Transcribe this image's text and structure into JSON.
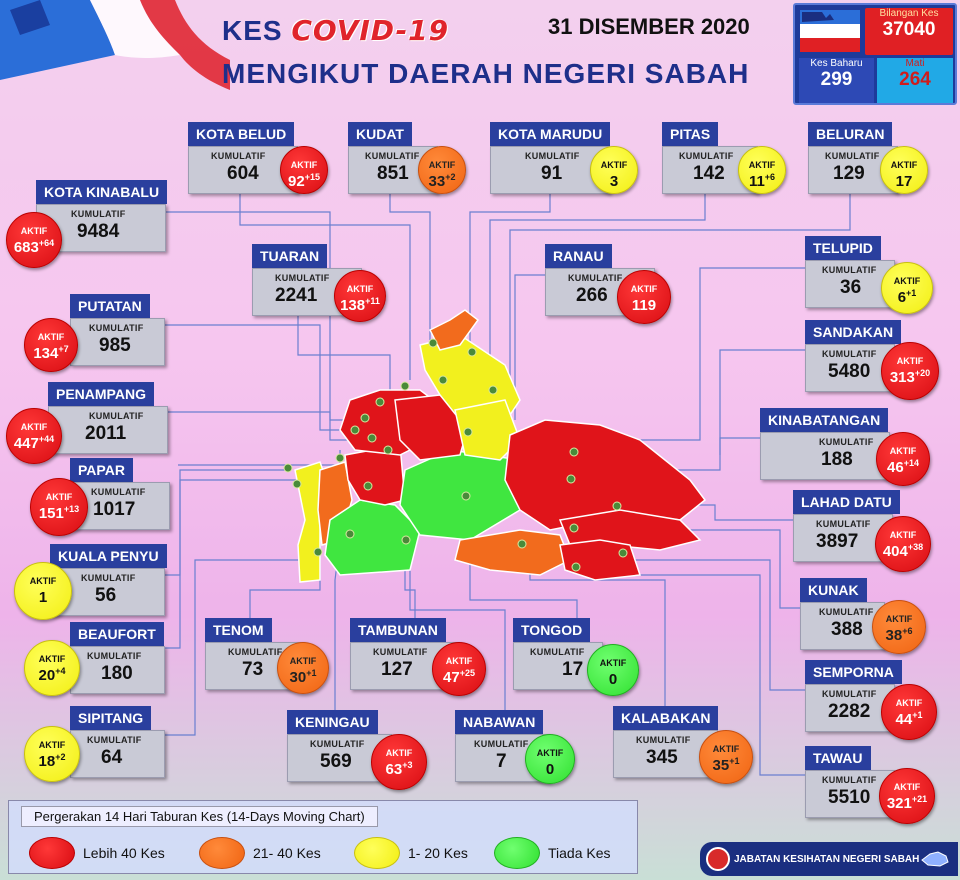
{
  "header": {
    "kes": "KES",
    "covid": "COVID-19",
    "subtitle": "MENGIKUT DAERAH NEGERI SABAH",
    "date": "31 DISEMBER 2020"
  },
  "stats": {
    "total_label": "Bilangan Kes",
    "total_value": "37040",
    "new_label": "Kes Baharu",
    "new_value": "299",
    "death_label": "Mati",
    "death_value": "264"
  },
  "labels": {
    "kumulatif": "KUMULATIF",
    "aktif": "AKTIF"
  },
  "districts": [
    {
      "id": "kota-belud",
      "name": "KOTA BELUD",
      "kumulatif": "604",
      "aktif": "92",
      "delta": "+15",
      "level": "red"
    },
    {
      "id": "kudat",
      "name": "KUDAT",
      "kumulatif": "851",
      "aktif": "33",
      "delta": "+2",
      "level": "orange"
    },
    {
      "id": "kota-marudu",
      "name": "KOTA MARUDU",
      "kumulatif": "91",
      "aktif": "3",
      "delta": "",
      "level": "yellow"
    },
    {
      "id": "pitas",
      "name": "PITAS",
      "kumulatif": "142",
      "aktif": "11",
      "delta": "+6",
      "level": "yellow"
    },
    {
      "id": "beluran",
      "name": "BELURAN",
      "kumulatif": "129",
      "aktif": "17",
      "delta": "",
      "level": "yellow"
    },
    {
      "id": "kota-kinabalu",
      "name": "KOTA KINABALU",
      "kumulatif": "9484",
      "aktif": "683",
      "delta": "+64",
      "level": "red"
    },
    {
      "id": "tuaran",
      "name": "TUARAN",
      "kumulatif": "2241",
      "aktif": "138",
      "delta": "+11",
      "level": "red"
    },
    {
      "id": "ranau",
      "name": "RANAU",
      "kumulatif": "266",
      "aktif": "119",
      "delta": "",
      "level": "red"
    },
    {
      "id": "telupid",
      "name": "TELUPID",
      "kumulatif": "36",
      "aktif": "6",
      "delta": "+1",
      "level": "yellow"
    },
    {
      "id": "putatan",
      "name": "PUTATAN",
      "kumulatif": "985",
      "aktif": "134",
      "delta": "+7",
      "level": "red"
    },
    {
      "id": "sandakan",
      "name": "SANDAKAN",
      "kumulatif": "5480",
      "aktif": "313",
      "delta": "+20",
      "level": "red"
    },
    {
      "id": "penampang",
      "name": "PENAMPANG",
      "kumulatif": "2011",
      "aktif": "447",
      "delta": "+44",
      "level": "red"
    },
    {
      "id": "kinabatangan",
      "name": "KINABATANGAN",
      "kumulatif": "188",
      "aktif": "46",
      "delta": "+14",
      "level": "red"
    },
    {
      "id": "papar",
      "name": "PAPAR",
      "kumulatif": "1017",
      "aktif": "151",
      "delta": "+13",
      "level": "red"
    },
    {
      "id": "lahad-datu",
      "name": "LAHAD DATU",
      "kumulatif": "3897",
      "aktif": "404",
      "delta": "+38",
      "level": "red"
    },
    {
      "id": "kuala-penyu",
      "name": "KUALA PENYU",
      "kumulatif": "56",
      "aktif": "1",
      "delta": "",
      "level": "yellow"
    },
    {
      "id": "kunak",
      "name": "KUNAK",
      "kumulatif": "388",
      "aktif": "38",
      "delta": "+6",
      "level": "orange"
    },
    {
      "id": "beaufort",
      "name": "BEAUFORT",
      "kumulatif": "180",
      "aktif": "20",
      "delta": "+4",
      "level": "yellow"
    },
    {
      "id": "tenom",
      "name": "TENOM",
      "kumulatif": "73",
      "aktif": "30",
      "delta": "+1",
      "level": "orange"
    },
    {
      "id": "tambunan",
      "name": "TAMBUNAN",
      "kumulatif": "127",
      "aktif": "47",
      "delta": "+25",
      "level": "red"
    },
    {
      "id": "tongod",
      "name": "TONGOD",
      "kumulatif": "17",
      "aktif": "0",
      "delta": "",
      "level": "green"
    },
    {
      "id": "semporna",
      "name": "SEMPORNA",
      "kumulatif": "2282",
      "aktif": "44",
      "delta": "+1",
      "level": "red"
    },
    {
      "id": "sipitang",
      "name": "SIPITANG",
      "kumulatif": "64",
      "aktif": "18",
      "delta": "+2",
      "level": "yellow"
    },
    {
      "id": "keningau",
      "name": "KENINGAU",
      "kumulatif": "569",
      "aktif": "63",
      "delta": "+3",
      "level": "red"
    },
    {
      "id": "nabawan",
      "name": "NABAWAN",
      "kumulatif": "7",
      "aktif": "0",
      "delta": "",
      "level": "green"
    },
    {
      "id": "kalabakan",
      "name": "KALABAKAN",
      "kumulatif": "345",
      "aktif": "35",
      "delta": "+1",
      "level": "orange"
    },
    {
      "id": "tawau",
      "name": "TAWAU",
      "kumulatif": "5510",
      "aktif": "321",
      "delta": "+21",
      "level": "red"
    }
  ],
  "legend": {
    "title": "Pergerakan 14 Hari Taburan Kes (14-Days Moving Chart)",
    "items": [
      {
        "label": "Lebih 40 Kes",
        "level": "red"
      },
      {
        "label": "21- 40 Kes",
        "level": "orange"
      },
      {
        "label": "1- 20 Kes",
        "level": "yellow"
      },
      {
        "label": "Tiada Kes",
        "level": "green"
      }
    ]
  },
  "footer": {
    "agency": "JABATAN KESIHATAN NEGERI SABAH"
  },
  "colors": {
    "red": "#e0141a",
    "orange": "#f26b1d",
    "yellow": "#f2f01e",
    "green": "#40e640",
    "title_blue": "#1e2f8a"
  }
}
